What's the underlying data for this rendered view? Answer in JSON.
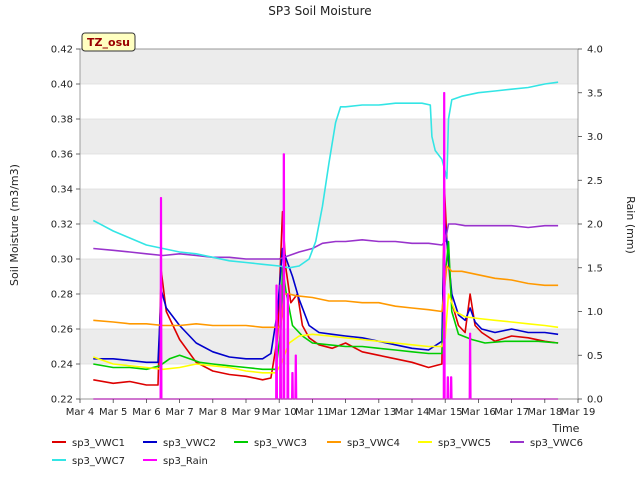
{
  "chart_data": {
    "type": "line",
    "title": "SP3 Soil Moisture",
    "xlabel": "Time",
    "ylabel": "Soil Moisture (m3/m3)",
    "y2label": "Rain (mm)",
    "badge": "TZ_osu",
    "xlim": [
      4,
      19
    ],
    "ylim": [
      0.22,
      0.42
    ],
    "y2lim": [
      0.0,
      4.0
    ],
    "x_ticks": [
      4,
      5,
      6,
      7,
      8,
      9,
      10,
      11,
      12,
      13,
      14,
      15,
      16,
      17,
      18,
      19
    ],
    "x_tick_labels": [
      "Mar 4",
      "Mar 5",
      "Mar 6",
      "Mar 7",
      "Mar 8",
      "Mar 9",
      "Mar 10",
      "Mar 11",
      "Mar 12",
      "Mar 13",
      "Mar 14",
      "Mar 15",
      "Mar 16",
      "Mar 17",
      "Mar 18",
      "Mar 19"
    ],
    "y_ticks": [
      0.22,
      0.24,
      0.26,
      0.28,
      0.3,
      0.32,
      0.34,
      0.36,
      0.38,
      0.4,
      0.42
    ],
    "y_tick_labels": [
      "0.22",
      "0.24",
      "0.26",
      "0.28",
      "0.30",
      "0.32",
      "0.34",
      "0.36",
      "0.38",
      "0.40",
      "0.42"
    ],
    "y2_ticks": [
      0.0,
      0.5,
      1.0,
      1.5,
      2.0,
      2.5,
      3.0,
      3.5,
      4.0
    ],
    "y2_tick_labels": [
      "0.0",
      "0.5",
      "1.0",
      "1.5",
      "2.0",
      "2.5",
      "3.0",
      "3.5",
      "4.0"
    ],
    "grid": "horizontal, alternating gray bands",
    "legend_position": "bottom",
    "series": [
      {
        "name": "sp3_VWC1",
        "color": "#dd0000",
        "axis": "left",
        "x": [
          4.4,
          5.0,
          5.5,
          6.0,
          6.35,
          6.45,
          6.6,
          7.0,
          7.5,
          8.0,
          8.5,
          9.0,
          9.5,
          9.75,
          9.95,
          10.1,
          10.2,
          10.35,
          10.55,
          10.7,
          10.9,
          11.2,
          11.6,
          12.0,
          12.5,
          13.0,
          13.5,
          14.0,
          14.5,
          14.9,
          14.98,
          15.05,
          15.2,
          15.4,
          15.6,
          15.75,
          15.9,
          16.1,
          16.5,
          17.0,
          17.5,
          18.0,
          18.4
        ],
        "y": [
          0.231,
          0.229,
          0.23,
          0.228,
          0.228,
          0.293,
          0.27,
          0.254,
          0.241,
          0.236,
          0.234,
          0.233,
          0.231,
          0.232,
          0.255,
          0.327,
          0.295,
          0.275,
          0.28,
          0.262,
          0.255,
          0.251,
          0.249,
          0.252,
          0.247,
          0.245,
          0.243,
          0.241,
          0.238,
          0.24,
          0.34,
          0.31,
          0.275,
          0.262,
          0.258,
          0.28,
          0.262,
          0.258,
          0.253,
          0.256,
          0.255,
          0.253,
          0.252
        ]
      },
      {
        "name": "sp3_VWC2",
        "color": "#0000cc",
        "axis": "left",
        "x": [
          4.4,
          5.0,
          5.5,
          6.0,
          6.35,
          6.45,
          6.6,
          7.0,
          7.5,
          8.0,
          8.5,
          9.0,
          9.5,
          9.75,
          9.95,
          10.1,
          10.25,
          10.4,
          10.6,
          10.9,
          11.2,
          11.6,
          12.0,
          12.5,
          13.0,
          13.5,
          14.0,
          14.5,
          14.9,
          14.98,
          15.05,
          15.2,
          15.4,
          15.6,
          15.75,
          15.9,
          16.1,
          16.5,
          17.0,
          17.5,
          18.0,
          18.4
        ],
        "y": [
          0.243,
          0.243,
          0.242,
          0.241,
          0.241,
          0.282,
          0.272,
          0.262,
          0.252,
          0.247,
          0.244,
          0.243,
          0.243,
          0.246,
          0.27,
          0.306,
          0.298,
          0.29,
          0.277,
          0.262,
          0.258,
          0.257,
          0.256,
          0.255,
          0.253,
          0.251,
          0.249,
          0.248,
          0.253,
          0.322,
          0.31,
          0.28,
          0.268,
          0.265,
          0.272,
          0.264,
          0.26,
          0.258,
          0.26,
          0.258,
          0.258,
          0.257
        ]
      },
      {
        "name": "sp3_VWC3",
        "color": "#00cc00",
        "axis": "left",
        "x": [
          4.4,
          5.0,
          5.5,
          6.0,
          6.4,
          6.7,
          7.0,
          7.3,
          7.6,
          8.0,
          8.5,
          9.0,
          9.5,
          9.9,
          10.05,
          10.1,
          10.2,
          10.4,
          10.7,
          11.0,
          11.5,
          12.0,
          12.5,
          13.0,
          13.5,
          14.0,
          14.5,
          14.9,
          15.0,
          15.1,
          15.2,
          15.4,
          15.8,
          16.2,
          16.8,
          17.2,
          17.8,
          18.4
        ],
        "y": [
          0.24,
          0.238,
          0.238,
          0.237,
          0.239,
          0.243,
          0.245,
          0.243,
          0.241,
          0.24,
          0.239,
          0.238,
          0.237,
          0.237,
          0.26,
          0.295,
          0.282,
          0.262,
          0.256,
          0.252,
          0.251,
          0.25,
          0.25,
          0.249,
          0.248,
          0.247,
          0.246,
          0.246,
          0.29,
          0.31,
          0.27,
          0.257,
          0.254,
          0.252,
          0.253,
          0.253,
          0.253,
          0.252
        ]
      },
      {
        "name": "sp3_VWC4",
        "color": "#ff9900",
        "axis": "left",
        "x": [
          4.4,
          5.0,
          5.5,
          6.0,
          6.5,
          7.0,
          7.5,
          8.0,
          8.5,
          9.0,
          9.5,
          10.0,
          10.05,
          10.15,
          10.3,
          10.5,
          11.0,
          11.5,
          12.0,
          12.5,
          13.0,
          13.5,
          14.0,
          14.5,
          14.9,
          15.05,
          15.2,
          15.5,
          16.0,
          16.5,
          17.0,
          17.5,
          18.0,
          18.4
        ],
        "y": [
          0.265,
          0.264,
          0.263,
          0.263,
          0.262,
          0.262,
          0.263,
          0.262,
          0.262,
          0.262,
          0.261,
          0.261,
          0.263,
          0.28,
          0.28,
          0.279,
          0.278,
          0.276,
          0.276,
          0.275,
          0.275,
          0.273,
          0.272,
          0.271,
          0.27,
          0.296,
          0.293,
          0.293,
          0.291,
          0.289,
          0.288,
          0.286,
          0.285,
          0.285
        ]
      },
      {
        "name": "sp3_VWC5",
        "color": "#ffff00",
        "axis": "left",
        "x": [
          4.4,
          5.0,
          5.5,
          6.0,
          6.5,
          7.0,
          7.5,
          8.0,
          8.5,
          9.0,
          9.5,
          9.9,
          10.05,
          10.3,
          10.6,
          11.0,
          11.5,
          12.0,
          12.5,
          13.0,
          13.5,
          14.0,
          14.5,
          14.9,
          15.0,
          15.1,
          15.3,
          15.6,
          16.0,
          16.5,
          17.0,
          17.5,
          18.0,
          18.4
        ],
        "y": [
          0.244,
          0.24,
          0.239,
          0.238,
          0.237,
          0.238,
          0.24,
          0.239,
          0.238,
          0.236,
          0.235,
          0.235,
          0.24,
          0.252,
          0.256,
          0.257,
          0.256,
          0.255,
          0.254,
          0.253,
          0.252,
          0.251,
          0.25,
          0.25,
          0.255,
          0.28,
          0.27,
          0.267,
          0.266,
          0.265,
          0.264,
          0.263,
          0.262,
          0.261
        ]
      },
      {
        "name": "sp3_VWC6",
        "color": "#9933cc",
        "axis": "left",
        "x": [
          4.4,
          5.0,
          5.5,
          6.0,
          6.5,
          7.0,
          7.5,
          8.0,
          8.5,
          9.0,
          9.5,
          10.0,
          10.3,
          10.6,
          11.0,
          11.3,
          11.7,
          12.0,
          12.5,
          13.0,
          13.5,
          14.0,
          14.5,
          14.9,
          15.0,
          15.1,
          15.3,
          15.6,
          16.0,
          16.5,
          17.0,
          17.5,
          18.0,
          18.4
        ],
        "y": [
          0.306,
          0.305,
          0.304,
          0.303,
          0.302,
          0.303,
          0.302,
          0.301,
          0.301,
          0.3,
          0.3,
          0.3,
          0.302,
          0.304,
          0.306,
          0.309,
          0.31,
          0.31,
          0.311,
          0.31,
          0.31,
          0.309,
          0.309,
          0.308,
          0.31,
          0.32,
          0.32,
          0.319,
          0.319,
          0.319,
          0.319,
          0.318,
          0.319,
          0.319
        ]
      },
      {
        "name": "sp3_VWC7",
        "color": "#33e5e5",
        "axis": "left",
        "x": [
          4.4,
          4.7,
          5.0,
          5.5,
          6.0,
          6.5,
          7.0,
          7.5,
          8.0,
          8.5,
          9.0,
          9.5,
          10.0,
          10.3,
          10.6,
          10.9,
          11.1,
          11.3,
          11.5,
          11.7,
          11.85,
          12.0,
          12.5,
          13.0,
          13.5,
          14.0,
          14.3,
          14.55,
          14.6,
          14.7,
          14.9,
          15.0,
          15.05,
          15.1,
          15.2,
          15.5,
          16.0,
          16.5,
          17.0,
          17.5,
          18.0,
          18.4
        ],
        "y": [
          0.322,
          0.319,
          0.316,
          0.312,
          0.308,
          0.306,
          0.304,
          0.303,
          0.301,
          0.299,
          0.298,
          0.297,
          0.296,
          0.295,
          0.296,
          0.3,
          0.31,
          0.33,
          0.355,
          0.378,
          0.387,
          0.387,
          0.388,
          0.388,
          0.389,
          0.389,
          0.389,
          0.388,
          0.37,
          0.362,
          0.357,
          0.35,
          0.346,
          0.38,
          0.391,
          0.393,
          0.395,
          0.396,
          0.397,
          0.398,
          0.4,
          0.401
        ]
      },
      {
        "name": "sp3_Rain",
        "color": "#ff00ff",
        "axis": "right",
        "x": [
          4.4,
          6.42,
          6.43,
          6.45,
          6.46,
          9.9,
          9.91,
          9.93,
          9.94,
          10.02,
          10.03,
          10.05,
          10.06,
          10.12,
          10.13,
          10.15,
          10.16,
          10.24,
          10.25,
          10.27,
          10.28,
          10.38,
          10.39,
          10.41,
          10.42,
          10.48,
          10.49,
          10.51,
          10.52,
          14.95,
          14.96,
          14.98,
          14.99,
          15.06,
          15.07,
          15.09,
          15.1,
          15.16,
          15.17,
          15.19,
          15.2,
          15.73,
          15.74,
          15.76,
          15.77,
          18.4
        ],
        "y": [
          0.0,
          0.0,
          2.3,
          2.3,
          0.0,
          0.0,
          1.3,
          1.3,
          0.0,
          0.0,
          1.3,
          1.3,
          0.0,
          0.0,
          2.8,
          2.8,
          0.0,
          0.0,
          1.2,
          1.2,
          0.0,
          0.0,
          0.3,
          0.3,
          0.0,
          0.0,
          0.5,
          0.5,
          0.0,
          0.0,
          3.5,
          3.5,
          0.0,
          0.0,
          0.25,
          0.25,
          0.0,
          0.0,
          0.25,
          0.25,
          0.0,
          0.0,
          0.75,
          0.75,
          0.0,
          0.0
        ]
      }
    ]
  }
}
